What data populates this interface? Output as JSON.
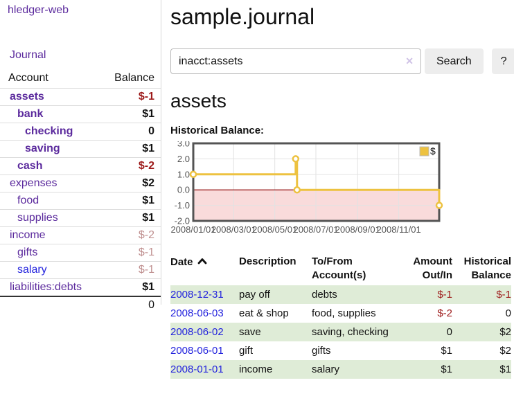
{
  "colors": {
    "link_purple": "#5b2a9d",
    "link_blue": "#2222dd",
    "neg_strong": "#9d1a1a",
    "neg_faded": "#bf8f8f",
    "row_green": "#dfecd7",
    "button_bg": "#ededed",
    "divider": "#d8d8d8",
    "chart_line": "#edc240",
    "chart_negative_fill": "#f9dbdb",
    "chart_zero_line": "#8b0000"
  },
  "sidebar": {
    "brand": "hledger-web",
    "nav_journal": "Journal",
    "accounts_table": {
      "headers": {
        "account": "Account",
        "balance": "Balance"
      },
      "rows": [
        {
          "name": "assets",
          "depth": 1,
          "bold": true,
          "blue": false,
          "balance": "$-1",
          "balance_style": "neg-strong"
        },
        {
          "name": "bank",
          "depth": 2,
          "bold": true,
          "blue": false,
          "balance": "$1",
          "balance_style": "pos"
        },
        {
          "name": "checking",
          "depth": 3,
          "bold": true,
          "blue": false,
          "balance": "0",
          "balance_style": "pos"
        },
        {
          "name": "saving",
          "depth": 3,
          "bold": true,
          "blue": false,
          "balance": "$1",
          "balance_style": "pos"
        },
        {
          "name": "cash",
          "depth": 2,
          "bold": true,
          "blue": false,
          "balance": "$-2",
          "balance_style": "neg-strong"
        },
        {
          "name": "expenses",
          "depth": 1,
          "bold": false,
          "blue": false,
          "balance": "$2",
          "balance_style": "pos"
        },
        {
          "name": "food",
          "depth": 2,
          "bold": false,
          "blue": false,
          "balance": "$1",
          "balance_style": "pos"
        },
        {
          "name": "supplies",
          "depth": 2,
          "bold": false,
          "blue": false,
          "balance": "$1",
          "balance_style": "pos"
        },
        {
          "name": "income",
          "depth": 1,
          "bold": false,
          "blue": false,
          "balance": "$-2",
          "balance_style": "neg-faded"
        },
        {
          "name": "gifts",
          "depth": 2,
          "bold": false,
          "blue": false,
          "balance": "$-1",
          "balance_style": "neg-faded"
        },
        {
          "name": "salary",
          "depth": 2,
          "bold": false,
          "blue": true,
          "balance": "$-1",
          "balance_style": "neg-faded"
        },
        {
          "name": "liabilities:debts",
          "depth": 1,
          "bold": false,
          "blue": false,
          "balance": "$1",
          "balance_style": "pos"
        }
      ],
      "total": "0"
    }
  },
  "header": {
    "title": "sample.journal"
  },
  "search": {
    "value": "inacct:assets",
    "clear_icon": "✕",
    "button": "Search",
    "help_button": "?"
  },
  "account_page": {
    "heading": "assets",
    "chart_label": "Historical Balance:"
  },
  "chart_data": {
    "type": "line",
    "step": true,
    "title": "Historical Balance:",
    "legend": "$",
    "legend_position": "top-right",
    "grid": true,
    "x_min": "2008-01-01",
    "x_max": "2008-12-31",
    "ylim": [
      -2.0,
      3.0
    ],
    "y_ticks": [
      3.0,
      2.0,
      1.0,
      0.0,
      -1.0,
      -2.0
    ],
    "x_ticks": [
      "2008/01/01",
      "2008/03/01",
      "2008/05/01",
      "2008/07/01",
      "2008/09/01",
      "2008/11/01"
    ],
    "series": [
      {
        "name": "$",
        "color": "#edc240",
        "points": [
          {
            "date": "2008-01-01",
            "y": 1
          },
          {
            "date": "2008-06-01",
            "y": 2
          },
          {
            "date": "2008-06-03",
            "y": 0
          },
          {
            "date": "2008-12-31",
            "y": -1
          }
        ]
      }
    ]
  },
  "register_table": {
    "headers": {
      "date": "Date",
      "description": "Description",
      "account": "To/From Account(s)",
      "amount": "Amount Out/In",
      "balance": "Historical Balance"
    },
    "rows": [
      {
        "date": "2008-12-31",
        "description": "pay off",
        "accounts": "debts",
        "amount": "$-1",
        "amount_neg": true,
        "balance": "$-1",
        "balance_neg": true
      },
      {
        "date": "2008-06-03",
        "description": "eat & shop",
        "accounts": "food, supplies",
        "amount": "$-2",
        "amount_neg": true,
        "balance": "0",
        "balance_neg": false
      },
      {
        "date": "2008-06-02",
        "description": "save",
        "accounts": "saving, checking",
        "amount": "0",
        "amount_neg": false,
        "balance": "$2",
        "balance_neg": false
      },
      {
        "date": "2008-06-01",
        "description": "gift",
        "accounts": "gifts",
        "amount": "$1",
        "amount_neg": false,
        "balance": "$2",
        "balance_neg": false
      },
      {
        "date": "2008-01-01",
        "description": "income",
        "accounts": "salary",
        "amount": "$1",
        "amount_neg": false,
        "balance": "$1",
        "balance_neg": false
      }
    ]
  }
}
